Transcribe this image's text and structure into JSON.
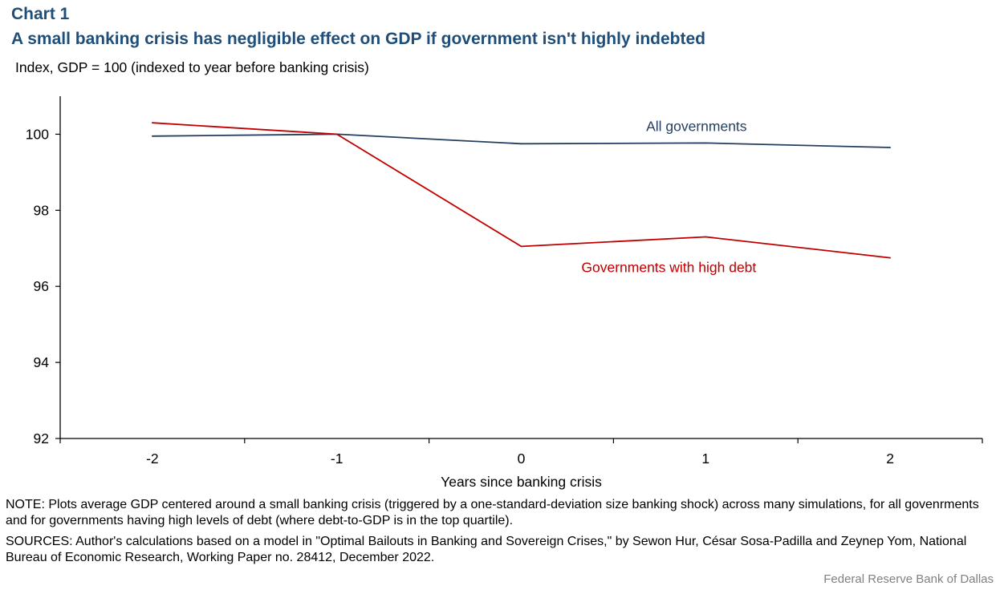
{
  "header": {
    "chart_label": "Chart 1",
    "title": "A small banking crisis has negligible effect on GDP if government isn't highly indebted",
    "subtitle": "Index, GDP = 100 (indexed to year before banking crisis)"
  },
  "footer": {
    "note": "NOTE: Plots average GDP centered around a small banking crisis (triggered by a one-standard-deviation size banking shock) across many simulations, for all govenrments and for governments having high levels of debt (where debt-to-GDP is in the top quartile).",
    "sources": "SOURCES: Author's calculations based on a model in \"Optimal Bailouts in Banking and Sovereign Crises,\" by Sewon Hur, César Sosa-Padilla and Zeynep Yom, National Bureau of Economic Research, Working Paper no. 28412, December 2022.",
    "credit": "Federal Reserve Bank of Dallas"
  },
  "chart_data": {
    "type": "line",
    "title": "A small banking crisis has negligible effect on GDP if government isn't highly indebted",
    "xlabel": "Years since banking crisis",
    "ylabel": "Index, GDP = 100 (indexed to year before banking crisis)",
    "x": [
      -2,
      -1,
      0,
      1,
      2
    ],
    "x_tick_labels": [
      "-2",
      "-1",
      "0",
      "1",
      "2"
    ],
    "xlim": [
      -2.5,
      2.5
    ],
    "ylim": [
      92,
      101
    ],
    "y_ticks": [
      92,
      94,
      96,
      98,
      100
    ],
    "grid": false,
    "legend": "inline labels",
    "series": [
      {
        "name": "All governments",
        "color": "#243f60",
        "values": [
          99.95,
          100.0,
          99.75,
          99.77,
          99.65
        ]
      },
      {
        "name": "Governments with high debt",
        "color": "#c00000",
        "values": [
          100.3,
          100.0,
          97.05,
          97.3,
          96.75
        ]
      }
    ]
  }
}
